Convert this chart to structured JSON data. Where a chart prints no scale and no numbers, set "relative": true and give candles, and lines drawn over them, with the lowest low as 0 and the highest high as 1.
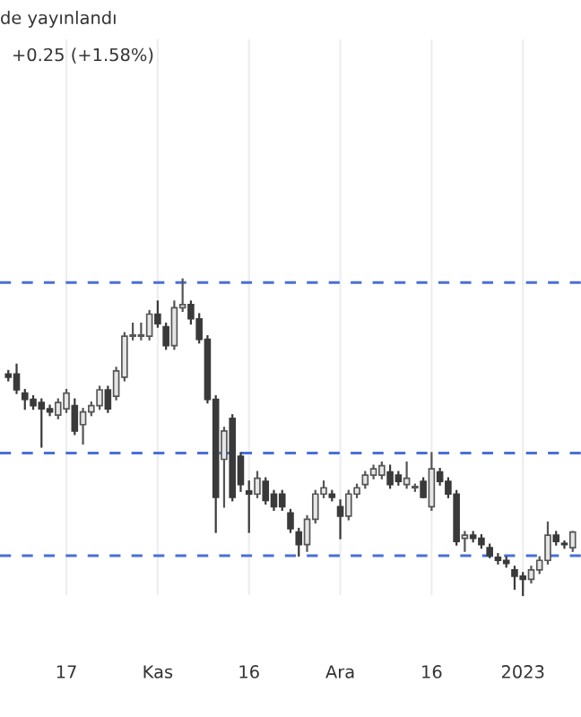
{
  "chart_data": {
    "type": "candlestick",
    "title": "de yayınlandı",
    "subtitle": "+0.25 (+1.58%)",
    "relative": true,
    "categories": [
      null,
      null,
      null,
      null,
      null,
      null,
      null,
      "17",
      null,
      null,
      null,
      null,
      null,
      null,
      null,
      null,
      null,
      null,
      "Kas",
      null,
      null,
      null,
      null,
      null,
      null,
      null,
      null,
      null,
      null,
      "16",
      null,
      null,
      null,
      null,
      null,
      null,
      null,
      null,
      null,
      null,
      "Ara",
      null,
      null,
      null,
      null,
      null,
      null,
      null,
      null,
      null,
      null,
      "16",
      null,
      null,
      null,
      null,
      null,
      null,
      null,
      null,
      null,
      null,
      "2023",
      null,
      null,
      null,
      null,
      null,
      null
    ],
    "ohlc": [
      [
        0.7,
        0.71,
        0.68,
        0.69
      ],
      [
        0.7,
        0.73,
        0.64,
        0.65
      ],
      [
        0.64,
        0.65,
        0.59,
        0.62
      ],
      [
        0.62,
        0.63,
        0.59,
        0.6
      ],
      [
        0.61,
        0.62,
        0.47,
        0.59
      ],
      [
        0.59,
        0.6,
        0.57,
        0.58
      ],
      [
        0.57,
        0.62,
        0.56,
        0.61
      ],
      [
        0.59,
        0.65,
        0.58,
        0.64
      ],
      [
        0.6,
        0.62,
        0.51,
        0.52
      ],
      [
        0.54,
        0.59,
        0.48,
        0.58
      ],
      [
        0.58,
        0.61,
        0.57,
        0.6
      ],
      [
        0.6,
        0.66,
        0.59,
        0.65
      ],
      [
        0.65,
        0.66,
        0.58,
        0.59
      ],
      [
        0.63,
        0.72,
        0.62,
        0.71
      ],
      [
        0.69,
        0.83,
        0.68,
        0.82
      ],
      [
        0.82,
        0.86,
        0.81,
        0.82
      ],
      [
        0.82,
        0.86,
        0.81,
        0.82
      ],
      [
        0.82,
        0.9,
        0.81,
        0.89
      ],
      [
        0.89,
        0.93,
        0.85,
        0.86
      ],
      [
        0.85,
        0.86,
        0.78,
        0.79
      ],
      [
        0.79,
        0.93,
        0.78,
        0.91
      ],
      [
        0.91,
        1.0,
        0.9,
        0.92
      ],
      [
        0.92,
        0.93,
        0.86,
        0.875
      ],
      [
        0.875,
        0.89,
        0.8,
        0.81
      ],
      [
        0.81,
        0.82,
        0.61,
        0.62
      ],
      [
        0.62,
        0.63,
        0.2,
        0.31
      ],
      [
        0.43,
        0.53,
        0.28,
        0.52
      ],
      [
        0.56,
        0.57,
        0.3,
        0.31
      ],
      [
        0.44,
        0.45,
        0.33,
        0.35
      ],
      [
        0.33,
        0.36,
        0.2,
        0.32
      ],
      [
        0.32,
        0.39,
        0.31,
        0.37
      ],
      [
        0.36,
        0.37,
        0.29,
        0.3
      ],
      [
        0.32,
        0.33,
        0.27,
        0.28
      ],
      [
        0.32,
        0.33,
        0.27,
        0.28
      ],
      [
        0.26,
        0.27,
        0.2,
        0.21
      ],
      [
        0.2,
        0.21,
        0.125,
        0.16
      ],
      [
        0.16,
        0.25,
        0.14,
        0.24
      ],
      [
        0.24,
        0.33,
        0.23,
        0.32
      ],
      [
        0.32,
        0.36,
        0.31,
        0.34
      ],
      [
        0.32,
        0.33,
        0.3,
        0.31
      ],
      [
        0.28,
        0.3,
        0.18,
        0.25
      ],
      [
        0.25,
        0.33,
        0.24,
        0.32
      ],
      [
        0.32,
        0.35,
        0.31,
        0.34
      ],
      [
        0.35,
        0.39,
        0.34,
        0.38
      ],
      [
        0.38,
        0.41,
        0.37,
        0.4
      ],
      [
        0.38,
        0.42,
        0.37,
        0.41
      ],
      [
        0.39,
        0.41,
        0.34,
        0.35
      ],
      [
        0.38,
        0.39,
        0.35,
        0.36
      ],
      [
        0.35,
        0.42,
        0.34,
        0.37
      ],
      [
        0.34,
        0.35,
        0.33,
        0.34
      ],
      [
        0.36,
        0.37,
        0.31,
        0.31
      ],
      [
        0.28,
        0.45,
        0.27,
        0.4
      ],
      [
        0.39,
        0.4,
        0.35,
        0.36
      ],
      [
        0.36,
        0.37,
        0.31,
        0.32
      ],
      [
        0.32,
        0.33,
        0.16,
        0.17
      ],
      [
        0.18,
        0.2,
        0.14,
        0.19
      ],
      [
        0.19,
        0.2,
        0.17,
        0.18
      ],
      [
        0.18,
        0.19,
        0.15,
        0.16
      ],
      [
        0.15,
        0.16,
        0.12,
        0.125
      ],
      [
        0.12,
        0.13,
        0.1,
        0.11
      ],
      [
        0.11,
        0.12,
        0.09,
        0.1
      ],
      [
        0.08,
        0.09,
        0.02,
        0.06
      ],
      [
        0.06,
        0.07,
        0.0,
        0.05
      ],
      [
        0.05,
        0.09,
        0.04,
        0.08
      ],
      [
        0.08,
        0.12,
        0.07,
        0.11
      ],
      [
        0.11,
        0.23,
        0.1,
        0.19
      ],
      [
        0.19,
        0.2,
        0.16,
        0.17
      ],
      [
        0.16,
        0.17,
        0.15,
        0.16
      ],
      [
        0.15,
        0.2,
        0.14,
        0.2
      ]
    ],
    "colors": [
      "#3a3a3a",
      "#3a3a3a",
      "#3a3a3a",
      "#3a3a3a",
      "#3a3a3a",
      "#3a3a3a",
      "#e6e6e6",
      "#e6e6e6",
      "#3a3a3a",
      "#e6e6e6",
      "#e6e6e6",
      "#e6e6e6",
      "#3a3a3a",
      "#e6e6e6",
      "#e6e6e6",
      "#e6e6e6",
      "#e6e6e6",
      "#e6e6e6",
      "#3a3a3a",
      "#3a3a3a",
      "#e6e6e6",
      "#e6e6e6",
      "#3a3a3a",
      "#3a3a3a",
      "#3a3a3a",
      "#3a3a3a",
      "#e6e6e6",
      "#3a3a3a",
      "#3a3a3a",
      "#3a3a3a",
      "#e6e6e6",
      "#3a3a3a",
      "#3a3a3a",
      "#3a3a3a",
      "#3a3a3a",
      "#3a3a3a",
      "#e6e6e6",
      "#e6e6e6",
      "#e6e6e6",
      "#3a3a3a",
      "#3a3a3a",
      "#e6e6e6",
      "#e6e6e6",
      "#e6e6e6",
      "#e6e6e6",
      "#e6e6e6",
      "#3a3a3a",
      "#3a3a3a",
      "#e6e6e6",
      "#e6e6e6",
      "#3a3a3a",
      "#e6e6e6",
      "#3a3a3a",
      "#3a3a3a",
      "#3a3a3a",
      "#e6e6e6",
      "#3a3a3a",
      "#3a3a3a",
      "#3a3a3a",
      "#3a3a3a",
      "#3a3a3a",
      "#3a3a3a",
      "#3a3a3a",
      "#e6e6e6",
      "#e6e6e6",
      "#e6e6e6",
      "#3a3a3a",
      "#3a3a3a",
      "#e6e6e6"
    ],
    "ref_lines": [
      {
        "axis": "y",
        "value": 0.99,
        "color": "#4a6fd8",
        "line_style": "dashed"
      },
      {
        "axis": "y",
        "value": 0.45,
        "color": "#4a6fd8",
        "line_style": "dashed"
      },
      {
        "axis": "y",
        "value": 0.125,
        "color": "#4a6fd8",
        "line_style": "dashed"
      }
    ],
    "grid": "x"
  }
}
